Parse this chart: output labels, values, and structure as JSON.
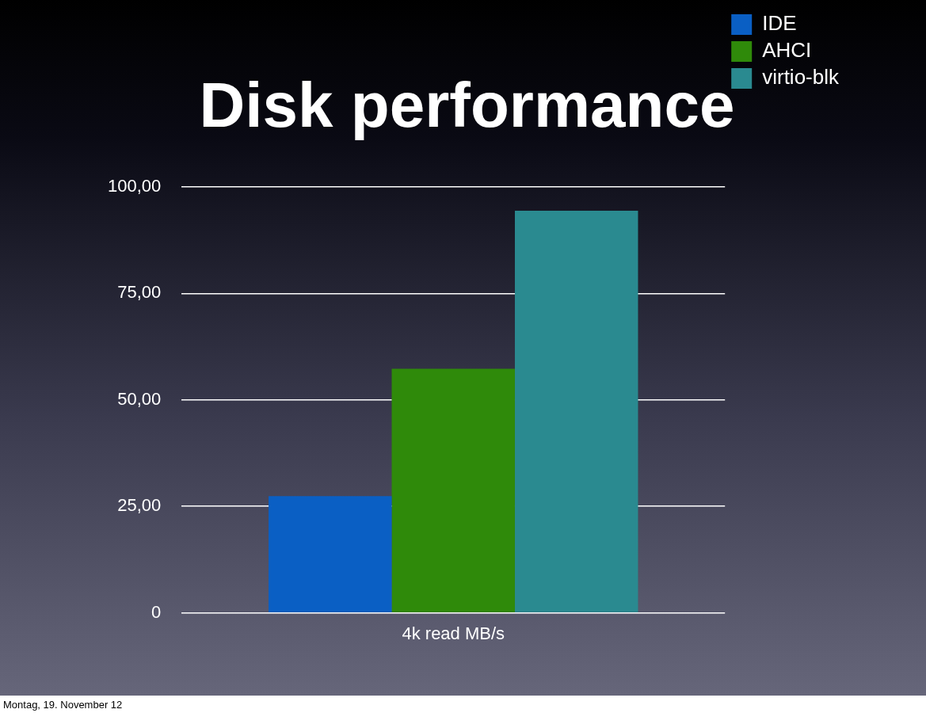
{
  "chart_data": {
    "type": "bar",
    "title": "Disk performance",
    "categories": [
      "4k read MB/s"
    ],
    "series": [
      {
        "name": "IDE",
        "color": "#0a5fc4",
        "values": [
          27.4
        ]
      },
      {
        "name": "AHCI",
        "color": "#2f8a0a",
        "values": [
          57.3
        ]
      },
      {
        "name": "virtio-blk",
        "color": "#2a8a90",
        "values": [
          94.4
        ]
      }
    ],
    "ylim": [
      0,
      100
    ],
    "yticks": [
      {
        "value": 0,
        "label": "0"
      },
      {
        "value": 25,
        "label": "25,00"
      },
      {
        "value": 50,
        "label": "50,00"
      },
      {
        "value": 75,
        "label": "75,00"
      },
      {
        "value": 100,
        "label": "100,00"
      }
    ],
    "grid": "y",
    "legend": "top right",
    "annotations": [
      "Montag, 19. November 12"
    ]
  }
}
